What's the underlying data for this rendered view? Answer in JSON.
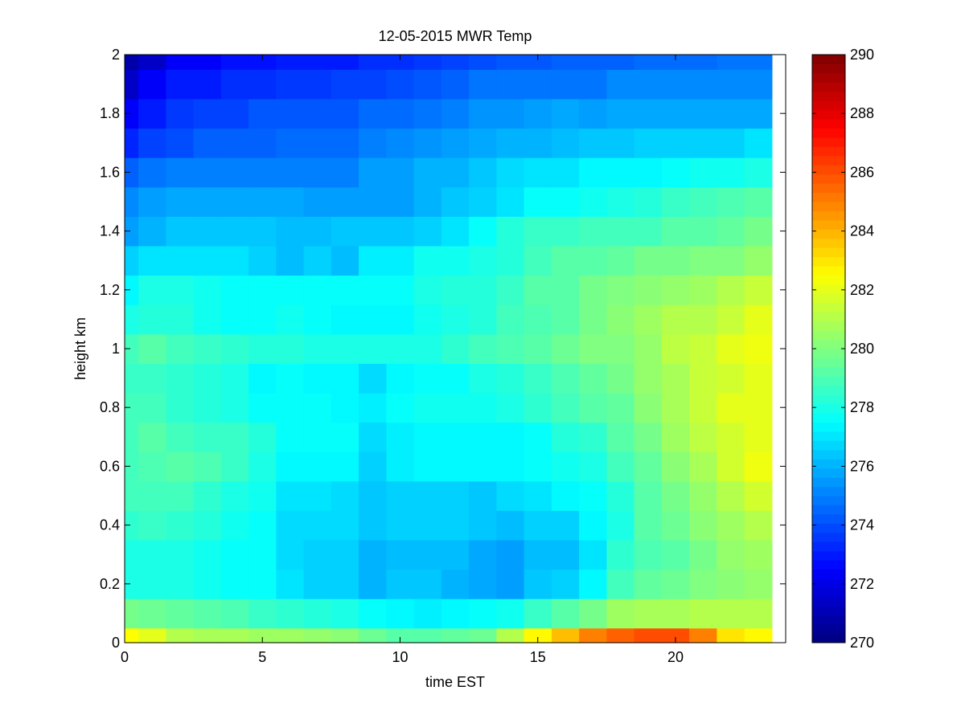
{
  "chart_data": {
    "type": "heatmap",
    "title": "12-05-2015 MWR Temp",
    "xlabel": "time EST",
    "ylabel": "height km",
    "xlim": [
      0,
      24
    ],
    "ylim": [
      0,
      2
    ],
    "x_ticks": [
      0,
      5,
      10,
      15,
      20
    ],
    "y_ticks": [
      0,
      0.2,
      0.4,
      0.6,
      0.8,
      1,
      1.2,
      1.4,
      1.6,
      1.8,
      2
    ],
    "colorbar": {
      "colormap": "jet",
      "limits": [
        270,
        290
      ],
      "ticks": [
        270,
        272,
        274,
        276,
        278,
        280,
        282,
        284,
        286,
        288,
        290
      ]
    },
    "x": [
      0,
      1,
      2,
      3,
      4,
      5,
      6,
      7,
      8,
      9,
      10,
      11,
      12,
      13,
      14,
      15,
      16,
      17,
      18,
      19,
      20,
      21,
      22,
      23
    ],
    "y_edges": [
      0,
      0.05,
      0.15,
      0.25,
      0.35,
      0.45,
      0.55,
      0.65,
      0.75,
      0.85,
      0.95,
      1.05,
      1.15,
      1.25,
      1.35,
      1.45,
      1.55,
      1.65,
      1.75,
      1.85,
      1.95,
      2.0
    ],
    "z": [
      [
        282.5,
        282.0,
        281.0,
        280.8,
        280.8,
        280.6,
        280.6,
        280.4,
        280.2,
        279.6,
        279.2,
        279.2,
        279.4,
        279.6,
        281.0,
        282.6,
        283.8,
        285.0,
        285.6,
        286.0,
        286.0,
        285.0,
        283.0,
        282.6
      ],
      [
        279.8,
        279.6,
        279.4,
        279.2,
        279.0,
        278.6,
        278.4,
        278.2,
        278.0,
        277.6,
        277.4,
        277.2,
        277.4,
        277.6,
        277.8,
        278.6,
        279.2,
        279.8,
        280.6,
        280.8,
        280.8,
        281.0,
        281.0,
        281.0
      ],
      [
        278.0,
        278.0,
        278.0,
        277.8,
        277.6,
        277.6,
        277.0,
        276.6,
        276.6,
        276.0,
        276.4,
        276.4,
        276.0,
        275.8,
        275.6,
        276.4,
        276.6,
        277.4,
        278.8,
        279.4,
        279.6,
        280.0,
        280.2,
        280.4
      ],
      [
        278.0,
        278.0,
        278.0,
        277.8,
        277.6,
        277.6,
        276.8,
        276.6,
        276.6,
        276.0,
        276.2,
        276.2,
        276.2,
        275.8,
        275.6,
        276.2,
        276.2,
        277.0,
        278.4,
        279.0,
        279.2,
        279.8,
        280.4,
        280.6
      ],
      [
        278.4,
        278.6,
        278.4,
        278.2,
        277.8,
        277.6,
        276.8,
        276.8,
        276.8,
        276.4,
        276.6,
        276.6,
        276.6,
        276.4,
        276.2,
        276.6,
        276.6,
        277.4,
        278.0,
        279.2,
        279.6,
        280.2,
        280.6,
        281.0
      ],
      [
        278.8,
        278.8,
        278.8,
        278.4,
        278.0,
        277.8,
        277.0,
        277.0,
        276.8,
        276.4,
        276.6,
        276.6,
        276.6,
        276.4,
        276.8,
        277.0,
        277.4,
        277.6,
        278.2,
        279.2,
        279.8,
        280.4,
        281.0,
        281.6
      ],
      [
        278.8,
        279.0,
        279.2,
        279.0,
        278.6,
        278.0,
        277.4,
        277.4,
        277.4,
        276.6,
        277.2,
        277.4,
        277.4,
        277.4,
        277.4,
        277.6,
        277.8,
        278.0,
        278.8,
        279.4,
        280.2,
        280.8,
        281.6,
        282.2
      ],
      [
        278.8,
        279.2,
        278.8,
        278.6,
        278.6,
        278.2,
        277.6,
        277.6,
        277.6,
        276.8,
        277.2,
        277.4,
        277.4,
        277.4,
        277.4,
        277.6,
        278.2,
        278.4,
        279.2,
        279.8,
        280.6,
        281.2,
        281.6,
        282.0
      ],
      [
        278.8,
        278.8,
        278.4,
        278.2,
        278.0,
        277.6,
        277.6,
        277.6,
        277.4,
        277.2,
        277.6,
        277.8,
        277.8,
        277.8,
        278.0,
        278.4,
        278.8,
        279.2,
        279.4,
        280.2,
        280.8,
        281.4,
        282.0,
        282.0
      ],
      [
        278.6,
        278.6,
        278.4,
        278.2,
        278.0,
        277.4,
        277.6,
        277.4,
        277.4,
        276.8,
        277.4,
        277.6,
        277.6,
        278.0,
        278.2,
        278.6,
        279.0,
        279.4,
        279.8,
        280.4,
        280.8,
        281.4,
        281.6,
        282.0
      ],
      [
        278.8,
        279.2,
        278.8,
        278.6,
        278.4,
        278.2,
        278.2,
        278.0,
        278.0,
        278.0,
        278.0,
        278.0,
        278.4,
        278.8,
        279.0,
        279.2,
        279.6,
        280.0,
        280.0,
        280.4,
        281.2,
        281.4,
        282.0,
        282.2
      ],
      [
        278.0,
        278.2,
        278.2,
        277.8,
        277.6,
        277.6,
        277.8,
        277.6,
        277.4,
        277.4,
        277.4,
        277.8,
        278.0,
        278.2,
        278.8,
        279.0,
        279.2,
        279.8,
        280.2,
        280.6,
        281.0,
        281.0,
        281.4,
        282.0
      ],
      [
        277.4,
        278.0,
        278.0,
        277.8,
        277.6,
        277.6,
        277.6,
        277.6,
        277.6,
        277.6,
        277.6,
        278.0,
        278.2,
        278.2,
        278.6,
        279.2,
        279.2,
        279.8,
        280.0,
        280.2,
        280.4,
        280.6,
        281.0,
        281.4
      ],
      [
        276.6,
        277.0,
        277.0,
        277.0,
        277.0,
        276.6,
        276.2,
        276.6,
        276.2,
        277.2,
        277.2,
        277.8,
        277.8,
        278.0,
        278.2,
        278.8,
        279.2,
        279.2,
        279.4,
        279.8,
        279.8,
        280.0,
        280.0,
        280.4
      ],
      [
        275.6,
        276.0,
        276.4,
        276.4,
        276.4,
        276.4,
        276.2,
        276.2,
        276.4,
        276.4,
        276.4,
        276.6,
        277.0,
        277.6,
        278.2,
        278.6,
        278.6,
        278.8,
        278.8,
        278.8,
        279.2,
        279.2,
        279.4,
        279.8
      ],
      [
        275.2,
        275.6,
        275.8,
        275.8,
        275.8,
        275.8,
        275.8,
        275.6,
        275.6,
        275.6,
        275.6,
        276.0,
        276.4,
        276.6,
        277.0,
        277.6,
        277.6,
        277.8,
        278.0,
        278.2,
        278.6,
        278.8,
        279.0,
        279.2
      ],
      [
        274.4,
        274.8,
        275.0,
        275.0,
        275.0,
        275.0,
        275.0,
        275.0,
        275.0,
        275.6,
        275.6,
        276.0,
        276.0,
        276.4,
        276.8,
        277.0,
        277.0,
        277.4,
        277.4,
        277.4,
        277.6,
        277.8,
        277.8,
        278.0
      ],
      [
        273.2,
        273.8,
        274.0,
        274.4,
        274.4,
        274.4,
        274.6,
        274.6,
        274.6,
        275.0,
        275.2,
        275.4,
        275.6,
        275.8,
        276.0,
        276.0,
        276.2,
        276.4,
        276.4,
        276.6,
        276.6,
        276.6,
        276.6,
        277.0
      ],
      [
        272.4,
        273.0,
        273.6,
        273.8,
        273.8,
        274.2,
        274.2,
        274.2,
        274.2,
        274.6,
        274.6,
        274.8,
        275.0,
        275.4,
        275.4,
        275.6,
        275.8,
        275.6,
        275.8,
        275.8,
        275.8,
        275.8,
        275.8,
        275.8
      ],
      [
        271.4,
        272.4,
        273.0,
        273.0,
        273.4,
        273.4,
        273.6,
        273.6,
        273.8,
        273.8,
        274.0,
        274.2,
        274.4,
        274.8,
        274.8,
        274.8,
        274.8,
        274.8,
        275.2,
        275.2,
        275.2,
        275.2,
        275.2,
        275.2
      ],
      [
        270.8,
        271.4,
        272.4,
        272.4,
        272.8,
        272.8,
        273.0,
        273.0,
        273.0,
        273.4,
        273.4,
        273.6,
        273.8,
        274.0,
        274.2,
        274.2,
        274.4,
        274.4,
        274.4,
        274.6,
        274.6,
        274.6,
        274.8,
        274.8
      ]
    ]
  }
}
